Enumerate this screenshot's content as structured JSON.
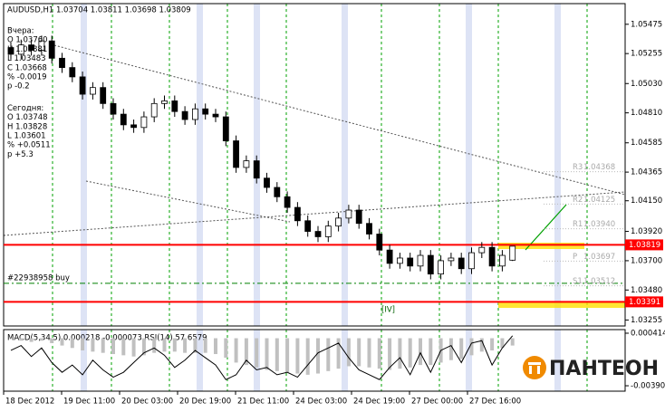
{
  "chart_data": {
    "type": "candlestick",
    "title": "AUDUSD,H1  1.03704 1.03811 1.03698 1.03809",
    "open": [
      1.053,
      1.0525,
      1.0532,
      1.0528,
      1.0535,
      1.0522,
      1.0515,
      1.0508,
      1.0495,
      1.05,
      1.0488,
      1.048,
      1.0472,
      1.047,
      1.0478,
      1.0488,
      1.049,
      1.0482,
      1.0476,
      1.0484,
      1.048,
      1.0478,
      1.046,
      1.044,
      1.0445,
      1.0432,
      1.0425,
      1.0418,
      1.041,
      1.04,
      1.0392,
      1.0388,
      1.0396,
      1.0402,
      1.0408,
      1.0398,
      1.039,
      1.0378,
      1.0368,
      1.0372,
      1.0366,
      1.0374,
      1.036,
      1.037,
      1.0372,
      1.0364,
      1.0376,
      1.038,
      1.0366,
      1.03704
    ],
    "high": [
      1.0534,
      1.0536,
      1.0536,
      1.0539,
      1.0539,
      1.0526,
      1.0519,
      1.0512,
      1.0504,
      1.0504,
      1.0492,
      1.0484,
      1.0476,
      1.0482,
      1.0492,
      1.0494,
      1.0494,
      1.0486,
      1.0488,
      1.0488,
      1.0484,
      1.0482,
      1.0464,
      1.0449,
      1.0449,
      1.0436,
      1.0429,
      1.0422,
      1.0414,
      1.0404,
      1.0396,
      1.04,
      1.0406,
      1.0412,
      1.0412,
      1.0402,
      1.0394,
      1.0382,
      1.0376,
      1.0376,
      1.0378,
      1.0378,
      1.0374,
      1.0376,
      1.0376,
      1.038,
      1.0384,
      1.0384,
      1.0378,
      1.03811
    ],
    "low": [
      1.0521,
      1.0521,
      1.0524,
      1.0524,
      1.0518,
      1.0511,
      1.0504,
      1.0491,
      1.0491,
      1.0484,
      1.0476,
      1.0468,
      1.0466,
      1.0466,
      1.0474,
      1.0484,
      1.0478,
      1.0472,
      1.0472,
      1.0476,
      1.0474,
      1.0456,
      1.0436,
      1.0436,
      1.0428,
      1.0421,
      1.0414,
      1.0406,
      1.0396,
      1.0388,
      1.0384,
      1.0384,
      1.0392,
      1.0398,
      1.0394,
      1.0386,
      1.0374,
      1.0364,
      1.0364,
      1.0362,
      1.0362,
      1.0356,
      1.0356,
      1.0366,
      1.036,
      1.036,
      1.0372,
      1.0362,
      1.0362,
      1.03698
    ],
    "close": [
      1.0525,
      1.0532,
      1.0528,
      1.0535,
      1.0522,
      1.0515,
      1.0508,
      1.0495,
      1.05,
      1.0488,
      1.048,
      1.0472,
      1.047,
      1.0478,
      1.0488,
      1.049,
      1.0482,
      1.0476,
      1.0484,
      1.048,
      1.0478,
      1.046,
      1.044,
      1.0445,
      1.0432,
      1.0425,
      1.0418,
      1.041,
      1.04,
      1.0392,
      1.0388,
      1.0396,
      1.0402,
      1.0408,
      1.0398,
      1.039,
      1.0378,
      1.0368,
      1.0372,
      1.0366,
      1.0374,
      1.036,
      1.037,
      1.0372,
      1.0364,
      1.0376,
      1.038,
      1.0366,
      1.0374,
      1.03809
    ],
    "ylim": [
      1.0321,
      1.0563
    ],
    "yticks": [
      1.05475,
      1.05255,
      {
        "value": 1.0503,
        "label": "1.05030"
      },
      {
        "value": 1.0481,
        "label": "1.04810"
      },
      1.04585,
      1.04365,
      {
        "value": 1.0415,
        "label": "1.04150"
      },
      {
        "value": 1.0392,
        "label": "1.03920"
      },
      {
        "value": 1.037,
        "label": "1.03700"
      },
      {
        "value": 1.0348,
        "label": "1.03480"
      },
      1.03255
    ],
    "levels": [
      {
        "value": 1.03819,
        "color": "#ff0000"
      },
      {
        "value": 1.03391,
        "color": "#ff0000"
      },
      {
        "value": 1.0353,
        "color": "#008000",
        "label": "#22938958 buy"
      }
    ],
    "pivots": [
      {
        "name": "R3",
        "value": 1.04368
      },
      {
        "name": "R2",
        "value": 1.04125
      },
      {
        "name": "R1",
        "value": 1.0394,
        "label": "1.03940"
      },
      {
        "name": "P",
        "value": 1.03697
      },
      {
        "name": "S1",
        "value": 1.03512
      }
    ],
    "xlabels": [
      "18 Dec 2012",
      "19 Dec 11:00",
      "20 Dec 03:00",
      "20 Dec 19:00",
      "21 Dec 11:00",
      "24 Dec 03:00",
      "24 Dec 19:00",
      "27 Dec 00:00",
      "27 Dec 16:00"
    ],
    "wave_label": "[IV]",
    "info": {
      "yesterday": [
        "Вчера:",
        "O 1.03760",
        "H 1.03881",
        "L 1.03483",
        "C 1.03668",
        "% -0.0019",
        "p -0.2"
      ],
      "today": [
        "Сегодня:",
        "O 1.03748",
        "H 1.03828",
        "L 1.03601",
        "% +0.0511",
        "p +5.3"
      ]
    },
    "indicator": {
      "title": "MACD(5,34,5) 0.000218 -0.000073 RSI(14) 57.6579",
      "ylim": [
        -0.00435,
        0.00071
      ],
      "yticks": [
        0.000414,
        -0.003905
      ],
      "histogram": [
        0,
        -0.0002,
        -0.0003,
        -0.0002,
        -0.0004,
        -0.0006,
        -0.0008,
        -0.001,
        -0.0011,
        -0.0012,
        -0.0013,
        -0.0014,
        -0.0015,
        -0.0014,
        -0.0012,
        -0.0011,
        -0.0011,
        -0.0012,
        -0.0012,
        -0.0012,
        -0.0013,
        -0.0016,
        -0.002,
        -0.0022,
        -0.0024,
        -0.0026,
        -0.0027,
        -0.0028,
        -0.0029,
        -0.003,
        -0.0029,
        -0.0027,
        -0.0025,
        -0.0023,
        -0.0023,
        -0.0024,
        -0.0025,
        -0.0026,
        -0.0025,
        -0.0024,
        -0.0022,
        -0.0022,
        -0.002,
        -0.0018,
        -0.0017,
        -0.0014,
        -0.0011,
        -0.001,
        -0.0008,
        -0.0006
      ],
      "line": [
        -0.001,
        -0.0006,
        -0.0015,
        -0.0008,
        -0.002,
        -0.0028,
        -0.0022,
        -0.003,
        -0.0018,
        -0.0026,
        -0.0032,
        -0.0028,
        -0.002,
        -0.0012,
        -0.0008,
        -0.0014,
        -0.0024,
        -0.0018,
        -0.001,
        -0.0016,
        -0.0022,
        -0.0034,
        -0.003,
        -0.0018,
        -0.0026,
        -0.0024,
        -0.003,
        -0.0028,
        -0.0032,
        -0.0022,
        -0.0012,
        -0.0008,
        -0.0004,
        -0.0016,
        -0.0026,
        -0.003,
        -0.0034,
        -0.0024,
        -0.0016,
        -0.003,
        -0.0012,
        -0.0028,
        -0.001,
        -0.0006,
        -0.002,
        -0.0004,
        -0.0002,
        -0.0022,
        -0.0008,
        0.0002
      ]
    },
    "logo": "ПАНТЕОН"
  }
}
